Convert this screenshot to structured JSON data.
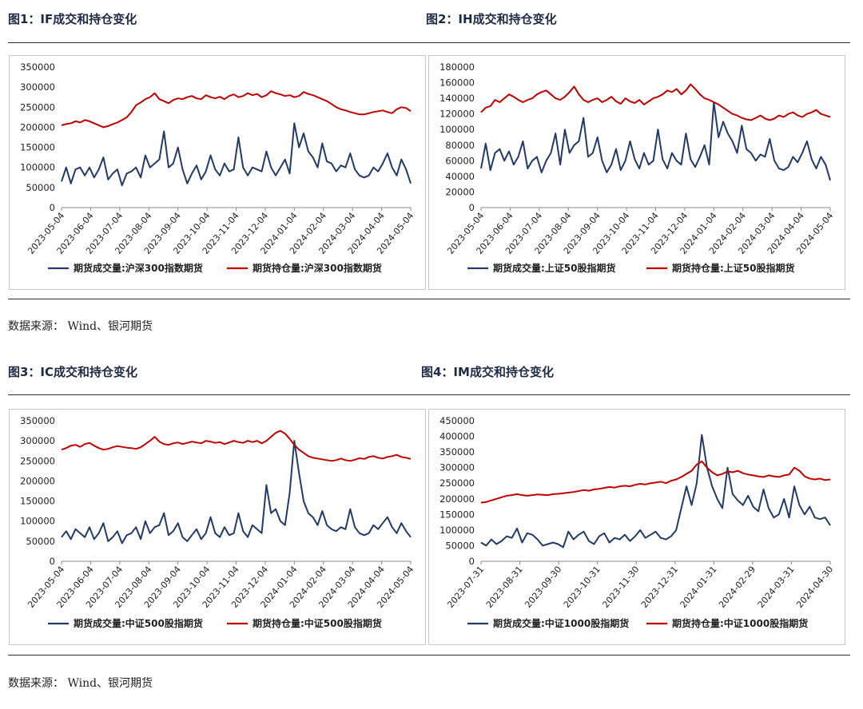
{
  "sections": [
    {
      "left_title": "图1：IF成交和持仓变化",
      "right_title": "图2：IH成交和持仓变化",
      "source": "数据来源： Wind、银河期货"
    },
    {
      "left_title": "图3：IC成交和持仓变化",
      "right_title": "图4：IM成交和持仓变化",
      "source": "数据来源： Wind、银河期货"
    }
  ],
  "colors": {
    "volume": "#233a66",
    "open_interest": "#c00000",
    "axis": "#888888",
    "text": "#1f1f1f"
  },
  "chart_data": [
    {
      "type": "line",
      "title": "图1：IF成交和持仓变化",
      "ylim": [
        0,
        350000
      ],
      "yticks": [
        "350000",
        "300000",
        "250000",
        "200000",
        "150000",
        "100000",
        "50000",
        "0"
      ],
      "xticks": [
        "2023-05-04",
        "2023-06-04",
        "2023-07-04",
        "2023-08-04",
        "2023-09-04",
        "2023-10-04",
        "2023-11-04",
        "2023-12-04",
        "2024-01-04",
        "2024-02-04",
        "2024-03-04",
        "2024-04-04",
        "2024-05-04"
      ],
      "legend_position": "bottom",
      "grid": false,
      "series": [
        {
          "name": "期货成交量:沪深300指数期货",
          "color": "#233a66",
          "values": [
            65000,
            100000,
            60000,
            95000,
            100000,
            80000,
            100000,
            75000,
            95000,
            125000,
            70000,
            85000,
            95000,
            55000,
            85000,
            90000,
            100000,
            75000,
            130000,
            100000,
            110000,
            120000,
            190000,
            100000,
            110000,
            150000,
            95000,
            60000,
            85000,
            105000,
            70000,
            90000,
            130000,
            95000,
            80000,
            110000,
            90000,
            95000,
            175000,
            100000,
            80000,
            100000,
            95000,
            90000,
            140000,
            100000,
            80000,
            100000,
            120000,
            85000,
            210000,
            150000,
            185000,
            140000,
            125000,
            100000,
            160000,
            115000,
            110000,
            90000,
            105000,
            100000,
            135000,
            95000,
            80000,
            75000,
            80000,
            100000,
            90000,
            110000,
            135000,
            100000,
            80000,
            120000,
            95000,
            60000
          ]
        },
        {
          "name": "期货持仓量:沪深300指数期货",
          "color": "#c00000",
          "values": [
            205000,
            208000,
            210000,
            215000,
            212000,
            218000,
            215000,
            210000,
            205000,
            200000,
            203000,
            208000,
            212000,
            218000,
            225000,
            238000,
            255000,
            262000,
            270000,
            275000,
            285000,
            270000,
            265000,
            260000,
            268000,
            272000,
            270000,
            275000,
            278000,
            272000,
            270000,
            280000,
            275000,
            272000,
            276000,
            270000,
            278000,
            282000,
            275000,
            278000,
            285000,
            280000,
            283000,
            275000,
            280000,
            290000,
            285000,
            282000,
            278000,
            280000,
            275000,
            278000,
            288000,
            283000,
            280000,
            275000,
            270000,
            265000,
            258000,
            250000,
            245000,
            242000,
            238000,
            235000,
            232000,
            232000,
            235000,
            238000,
            240000,
            242000,
            238000,
            235000,
            245000,
            250000,
            248000,
            240000
          ]
        }
      ]
    },
    {
      "type": "line",
      "title": "图2：IH成交和持仓变化",
      "ylim": [
        0,
        180000
      ],
      "yticks": [
        "180000",
        "160000",
        "140000",
        "120000",
        "100000",
        "80000",
        "60000",
        "40000",
        "20000",
        "0"
      ],
      "xticks": [
        "2023-05-04",
        "2023-06-04",
        "2023-07-04",
        "2023-08-04",
        "2023-09-04",
        "2023-10-04",
        "2023-11-04",
        "2023-12-04",
        "2024-01-04",
        "2024-02-04",
        "2024-03-04",
        "2024-04-04",
        "2024-05-04"
      ],
      "legend_position": "bottom",
      "grid": false,
      "series": [
        {
          "name": "期货成交量:上证50股指期货",
          "color": "#233a66",
          "values": [
            50000,
            82000,
            48000,
            70000,
            75000,
            60000,
            72000,
            55000,
            65000,
            85000,
            50000,
            60000,
            65000,
            45000,
            60000,
            70000,
            95000,
            55000,
            100000,
            70000,
            80000,
            85000,
            115000,
            65000,
            70000,
            90000,
            60000,
            45000,
            55000,
            75000,
            48000,
            60000,
            85000,
            62000,
            50000,
            70000,
            55000,
            60000,
            100000,
            62000,
            50000,
            70000,
            60000,
            55000,
            95000,
            62000,
            52000,
            65000,
            80000,
            55000,
            135000,
            90000,
            110000,
            95000,
            85000,
            70000,
            105000,
            75000,
            70000,
            60000,
            68000,
            65000,
            88000,
            60000,
            50000,
            48000,
            52000,
            65000,
            58000,
            70000,
            85000,
            62000,
            50000,
            65000,
            55000,
            35000
          ]
        },
        {
          "name": "期货持仓量:上证50股指期货",
          "color": "#c00000",
          "values": [
            122000,
            128000,
            130000,
            138000,
            135000,
            140000,
            145000,
            142000,
            138000,
            135000,
            138000,
            140000,
            145000,
            148000,
            150000,
            145000,
            140000,
            138000,
            142000,
            148000,
            155000,
            145000,
            138000,
            135000,
            138000,
            140000,
            135000,
            138000,
            142000,
            136000,
            133000,
            140000,
            136000,
            134000,
            138000,
            132000,
            136000,
            140000,
            142000,
            145000,
            150000,
            148000,
            152000,
            145000,
            150000,
            158000,
            152000,
            145000,
            140000,
            138000,
            135000,
            132000,
            128000,
            124000,
            120000,
            118000,
            115000,
            113000,
            112000,
            115000,
            118000,
            114000,
            112000,
            114000,
            118000,
            116000,
            120000,
            122000,
            118000,
            116000,
            120000,
            122000,
            125000,
            120000,
            118000,
            116000
          ]
        }
      ]
    },
    {
      "type": "line",
      "title": "图3：IC成交和持仓变化",
      "ylim": [
        0,
        350000
      ],
      "yticks": [
        "350000",
        "300000",
        "250000",
        "200000",
        "150000",
        "100000",
        "50000",
        "0"
      ],
      "xticks": [
        "2023-05-04",
        "2023-06-04",
        "2023-07-04",
        "2023-08-04",
        "2023-09-04",
        "2023-10-04",
        "2023-11-04",
        "2023-12-04",
        "2024-01-04",
        "2024-02-04",
        "2024-03-04",
        "2024-04-04",
        "2024-05-04"
      ],
      "legend_position": "bottom",
      "grid": false,
      "series": [
        {
          "name": "期货成交量:中证500股指期货",
          "color": "#233a66",
          "values": [
            60000,
            75000,
            55000,
            80000,
            70000,
            60000,
            85000,
            55000,
            70000,
            95000,
            50000,
            60000,
            75000,
            45000,
            65000,
            70000,
            85000,
            55000,
            100000,
            70000,
            85000,
            90000,
            120000,
            65000,
            75000,
            95000,
            60000,
            50000,
            65000,
            80000,
            55000,
            70000,
            110000,
            70000,
            60000,
            85000,
            65000,
            70000,
            120000,
            75000,
            60000,
            90000,
            80000,
            70000,
            190000,
            120000,
            130000,
            100000,
            90000,
            170000,
            300000,
            220000,
            150000,
            120000,
            110000,
            90000,
            125000,
            90000,
            80000,
            75000,
            85000,
            80000,
            130000,
            85000,
            70000,
            65000,
            70000,
            90000,
            80000,
            95000,
            110000,
            85000,
            70000,
            95000,
            75000,
            60000
          ]
        },
        {
          "name": "期货持仓量:中证500股指期货",
          "color": "#c00000",
          "values": [
            278000,
            282000,
            288000,
            290000,
            285000,
            292000,
            295000,
            288000,
            282000,
            278000,
            280000,
            284000,
            287000,
            285000,
            283000,
            282000,
            280000,
            284000,
            292000,
            300000,
            310000,
            298000,
            292000,
            290000,
            294000,
            296000,
            292000,
            295000,
            298000,
            296000,
            294000,
            300000,
            298000,
            295000,
            297000,
            292000,
            296000,
            300000,
            297000,
            295000,
            300000,
            297000,
            300000,
            294000,
            300000,
            310000,
            320000,
            325000,
            318000,
            305000,
            290000,
            278000,
            270000,
            262000,
            258000,
            256000,
            254000,
            252000,
            250000,
            252000,
            256000,
            252000,
            250000,
            253000,
            257000,
            255000,
            260000,
            262000,
            258000,
            256000,
            260000,
            262000,
            265000,
            260000,
            258000,
            255000
          ]
        }
      ]
    },
    {
      "type": "line",
      "title": "图4：IM成交和持仓变化",
      "ylim": [
        0,
        450000
      ],
      "yticks": [
        "450000",
        "400000",
        "350000",
        "300000",
        "250000",
        "200000",
        "150000",
        "100000",
        "50000",
        "0"
      ],
      "xticks": [
        "2023-07-31",
        "2023-08-31",
        "2023-09-30",
        "2023-10-31",
        "2023-11-30",
        "2023-12-31",
        "2024-01-31",
        "2024-02-29",
        "2024-03-31",
        "2024-04-30"
      ],
      "legend_position": "bottom",
      "grid": false,
      "series": [
        {
          "name": "期货成交量:中证1000股指期货",
          "color": "#233a66",
          "values": [
            60000,
            50000,
            70000,
            55000,
            65000,
            80000,
            75000,
            105000,
            60000,
            90000,
            85000,
            70000,
            50000,
            55000,
            60000,
            55000,
            45000,
            95000,
            70000,
            85000,
            95000,
            65000,
            55000,
            80000,
            90000,
            60000,
            75000,
            70000,
            85000,
            65000,
            80000,
            100000,
            75000,
            85000,
            95000,
            75000,
            70000,
            80000,
            100000,
            170000,
            240000,
            180000,
            250000,
            405000,
            300000,
            240000,
            200000,
            170000,
            300000,
            215000,
            195000,
            180000,
            210000,
            175000,
            160000,
            230000,
            170000,
            140000,
            150000,
            200000,
            140000,
            240000,
            180000,
            150000,
            175000,
            140000,
            135000,
            140000,
            115000
          ]
        },
        {
          "name": "期货持仓量:中证1000股指期货",
          "color": "#c00000",
          "values": [
            188000,
            190000,
            195000,
            200000,
            205000,
            210000,
            212000,
            215000,
            212000,
            210000,
            212000,
            214000,
            213000,
            212000,
            215000,
            216000,
            218000,
            220000,
            222000,
            225000,
            228000,
            226000,
            230000,
            232000,
            235000,
            238000,
            236000,
            240000,
            242000,
            240000,
            245000,
            248000,
            246000,
            250000,
            252000,
            255000,
            250000,
            258000,
            262000,
            270000,
            280000,
            290000,
            310000,
            320000,
            300000,
            285000,
            275000,
            280000,
            288000,
            285000,
            290000,
            282000,
            278000,
            275000,
            272000,
            270000,
            275000,
            272000,
            270000,
            275000,
            278000,
            300000,
            290000,
            272000,
            265000,
            262000,
            265000,
            260000,
            262000
          ]
        }
      ]
    }
  ]
}
